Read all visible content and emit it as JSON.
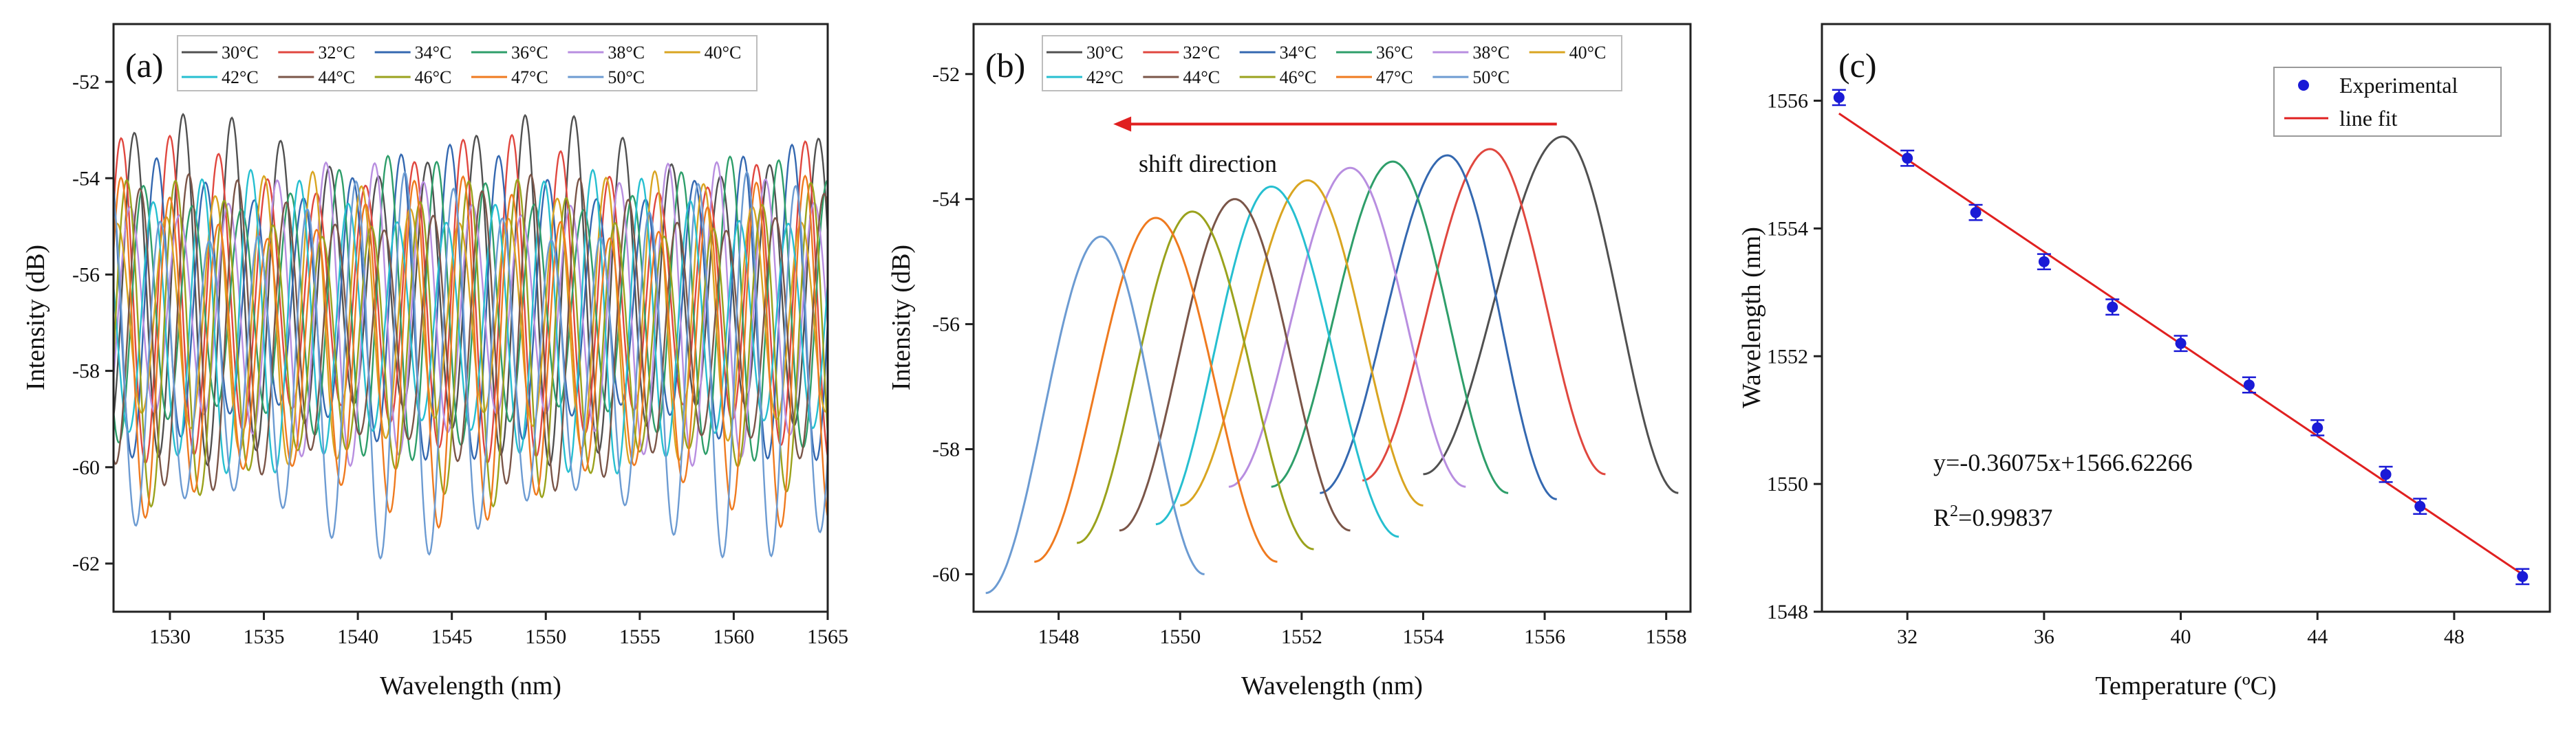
{
  "chart_data": [
    {
      "type": "line",
      "panel_label": "(a)",
      "xlabel": "Wavelength (nm)",
      "ylabel": "Intensity (dB)",
      "xlim": [
        1527,
        1565
      ],
      "ylim": [
        -63,
        -50.8
      ],
      "xticks": [
        1530,
        1535,
        1540,
        1545,
        1550,
        1555,
        1560,
        1565
      ],
      "yticks": [
        -62,
        -60,
        -58,
        -56,
        -54,
        -52
      ],
      "xtick_labels": [
        "1530",
        "1535",
        "1540",
        "1545",
        "1550",
        "1555",
        "1560",
        "1565"
      ],
      "ytick_labels": [
        "-62",
        "-60",
        "-58",
        "-56",
        "-54",
        "-52"
      ],
      "legend_placement": "top",
      "series": [
        {
          "name": "30°C",
          "color": "#505050",
          "period": 2.6,
          "phase": 1533.3,
          "mean": -56.3,
          "amp": 3.0
        },
        {
          "name": "32°C",
          "color": "#e0473f",
          "period": 2.6,
          "phase": 1532.6,
          "mean": -56.5,
          "amp": 2.8
        },
        {
          "name": "34°C",
          "color": "#3468b0",
          "period": 2.6,
          "phase": 1531.9,
          "mean": -56.6,
          "amp": 2.7
        },
        {
          "name": "36°C",
          "color": "#2e9e6a",
          "period": 2.6,
          "phase": 1531.2,
          "mean": -56.7,
          "amp": 2.6
        },
        {
          "name": "38°C",
          "color": "#b88ee0",
          "period": 2.6,
          "phase": 1530.5,
          "mean": -56.8,
          "amp": 2.6
        },
        {
          "name": "40°C",
          "color": "#d9a521",
          "period": 2.6,
          "phase": 1529.8,
          "mean": -56.9,
          "amp": 2.5
        },
        {
          "name": "42°C",
          "color": "#26bfd0",
          "period": 2.6,
          "phase": 1529.1,
          "mean": -57.0,
          "amp": 2.6
        },
        {
          "name": "44°C",
          "color": "#7a5548",
          "period": 2.6,
          "phase": 1528.4,
          "mean": -57.2,
          "amp": 2.7
        },
        {
          "name": "46°C",
          "color": "#9aa21c",
          "period": 2.6,
          "phase": 1527.7,
          "mean": -57.4,
          "amp": 2.8
        },
        {
          "name": "47°C",
          "color": "#ef7a1f",
          "period": 2.6,
          "phase": 1527.4,
          "mean": -57.6,
          "amp": 3.0
        },
        {
          "name": "50°C",
          "color": "#6c9bd2",
          "period": 2.6,
          "phase": 1526.9,
          "mean": -57.9,
          "amp": 3.3
        }
      ]
    },
    {
      "type": "line",
      "panel_label": "(b)",
      "xlabel": "Wavelength (nm)",
      "ylabel": "Intensity (dB)",
      "xlim": [
        1546.6,
        1558.4
      ],
      "ylim": [
        -60.6,
        -51.2
      ],
      "xticks": [
        1548,
        1550,
        1552,
        1554,
        1556,
        1558
      ],
      "yticks": [
        -60,
        -58,
        -56,
        -54,
        -52
      ],
      "xtick_labels": [
        "1548",
        "1550",
        "1552",
        "1554",
        "1556",
        "1558"
      ],
      "ytick_labels": [
        "-60",
        "-58",
        "-56",
        "-54",
        "-52"
      ],
      "annotation": "shift direction",
      "arrow_color": "#e02020",
      "arrow_from_x": 1556.2,
      "arrow_to_x": 1548.9,
      "arrow_y": -52.8,
      "series": [
        {
          "name": "30°C",
          "color": "#505050",
          "peak_x": 1556.3,
          "peak_y": -53.0,
          "x_start": 1554.0,
          "y_start": -58.4,
          "x_end": 1558.2,
          "y_end": -58.7
        },
        {
          "name": "32°C",
          "color": "#e0473f",
          "peak_x": 1555.1,
          "peak_y": -53.2,
          "x_start": 1553.0,
          "y_start": -58.5,
          "x_end": 1557.0,
          "y_end": -58.4
        },
        {
          "name": "34°C",
          "color": "#3468b0",
          "peak_x": 1554.4,
          "peak_y": -53.3,
          "x_start": 1552.3,
          "y_start": -58.7,
          "x_end": 1556.2,
          "y_end": -58.8
        },
        {
          "name": "36°C",
          "color": "#2e9e6a",
          "peak_x": 1553.5,
          "peak_y": -53.4,
          "x_start": 1551.5,
          "y_start": -58.6,
          "x_end": 1555.4,
          "y_end": -58.7
        },
        {
          "name": "38°C",
          "color": "#b88ee0",
          "peak_x": 1552.8,
          "peak_y": -53.5,
          "x_start": 1550.8,
          "y_start": -58.6,
          "x_end": 1554.7,
          "y_end": -58.6
        },
        {
          "name": "40°C",
          "color": "#d9a521",
          "peak_x": 1552.1,
          "peak_y": -53.7,
          "x_start": 1550.0,
          "y_start": -58.9,
          "x_end": 1554.0,
          "y_end": -58.9
        },
        {
          "name": "42°C",
          "color": "#26bfd0",
          "peak_x": 1551.5,
          "peak_y": -53.8,
          "x_start": 1549.6,
          "y_start": -59.2,
          "x_end": 1553.6,
          "y_end": -59.4
        },
        {
          "name": "44°C",
          "color": "#7a5548",
          "peak_x": 1550.9,
          "peak_y": -54.0,
          "x_start": 1549.0,
          "y_start": -59.3,
          "x_end": 1552.8,
          "y_end": -59.3
        },
        {
          "name": "46°C",
          "color": "#9aa21c",
          "peak_x": 1550.2,
          "peak_y": -54.2,
          "x_start": 1548.3,
          "y_start": -59.5,
          "x_end": 1552.2,
          "y_end": -59.6
        },
        {
          "name": "47°C",
          "color": "#ef7a1f",
          "peak_x": 1549.6,
          "peak_y": -54.3,
          "x_start": 1547.6,
          "y_start": -59.8,
          "x_end": 1551.6,
          "y_end": -59.8
        },
        {
          "name": "50°C",
          "color": "#6c9bd2",
          "peak_x": 1548.7,
          "peak_y": -54.6,
          "x_start": 1546.8,
          "y_start": -60.3,
          "x_end": 1550.4,
          "y_end": -60.0
        }
      ]
    },
    {
      "type": "scatter",
      "panel_label": "(c)",
      "xlabel": "Temperature (ºC)",
      "ylabel": "Wavelength (nm)",
      "xlim": [
        29.5,
        50.8
      ],
      "ylim": [
        1548,
        1557.2
      ],
      "xticks": [
        32,
        36,
        40,
        44,
        48
      ],
      "yticks": [
        1548,
        1550,
        1552,
        1554,
        1556
      ],
      "xtick_labels": [
        "32",
        "36",
        "40",
        "44",
        "48"
      ],
      "ytick_labels": [
        "1548",
        "1550",
        "1552",
        "1554",
        "1556"
      ],
      "legend_placement": "top-right",
      "marker_color": "#1a1ad6",
      "line_color": "#e02020",
      "series": [
        {
          "name": "Experimental",
          "x": [
            30,
            32,
            34,
            36,
            38,
            40,
            42,
            44,
            46,
            47,
            50
          ],
          "y": [
            1556.05,
            1555.1,
            1554.25,
            1553.48,
            1552.77,
            1552.2,
            1551.55,
            1550.88,
            1550.15,
            1549.65,
            1548.55
          ],
          "err": 0.12
        },
        {
          "name": "line fit",
          "slope": -0.36075,
          "intercept": 1566.62266,
          "x_range": [
            30,
            50
          ]
        }
      ],
      "fit_equation": "y=-0.36075x+1566.62266",
      "r2_label_prefix": "R",
      "r2_label_sup": "2",
      "r2_label_value": "=0.99837"
    }
  ]
}
